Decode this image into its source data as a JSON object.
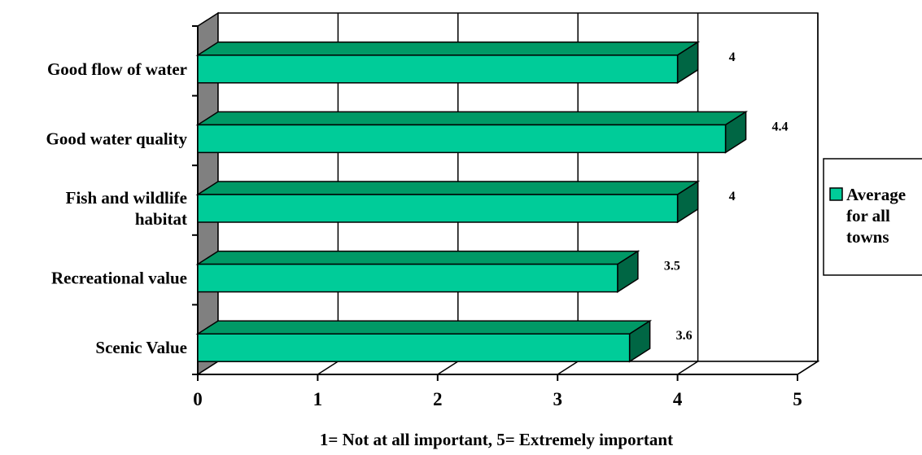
{
  "chart_data": {
    "type": "bar",
    "orientation": "horizontal",
    "three_d": true,
    "categories": [
      "Good flow of water",
      "Good water quality",
      "Fish and wildlife habitat",
      "Recreational value",
      "Scenic Value"
    ],
    "category_label_lines": [
      [
        "Good flow of water"
      ],
      [
        "Good water quality"
      ],
      [
        "Fish and wildlife",
        "habitat"
      ],
      [
        "Recreational value"
      ],
      [
        "Scenic Value"
      ]
    ],
    "series": [
      {
        "name": "Average for all towns",
        "values": [
          4,
          4.4,
          4,
          3.5,
          3.6
        ],
        "data_labels": [
          "4",
          "4.4",
          "4",
          "3.5",
          "3.6"
        ]
      }
    ],
    "legend": {
      "entry_lines": [
        "Average",
        "for all",
        "towns"
      ],
      "placement": "right"
    },
    "xlabel": "1= Not at all important,  5= Extremely important",
    "ylabel": "",
    "xlim": [
      0,
      5
    ],
    "xticks": [
      0,
      1,
      2,
      3,
      4,
      5
    ],
    "grid": true,
    "colors": {
      "bar_front": "#00CC99",
      "bar_top": "#009966",
      "bar_side": "#006644",
      "wall": "#808080",
      "edge": "#000000"
    }
  }
}
